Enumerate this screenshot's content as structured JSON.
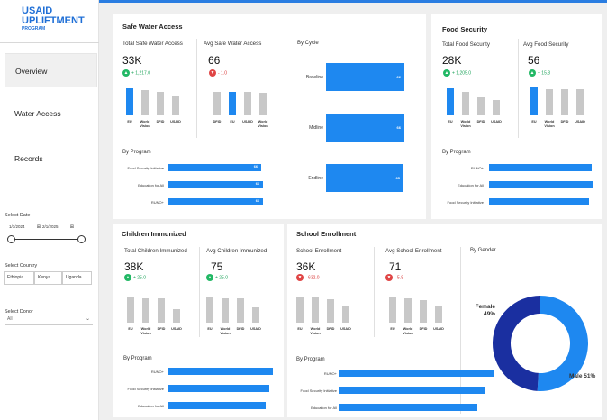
{
  "app": {
    "title": "USAID\nUPLIFTMENT",
    "title_line1": "USAID",
    "title_line2": "UPLIFTMENT",
    "subtitle": "PROGRAM"
  },
  "nav": [
    {
      "label": "Overview",
      "active": true
    },
    {
      "label": "Water Access",
      "active": false
    },
    {
      "label": "Records",
      "active": false
    }
  ],
  "filters": {
    "date_label": "Select Date",
    "date_start": "1/1/2024",
    "date_end": "2/1/2025",
    "country_label": "Select Country",
    "countries": [
      "Ethiopia",
      "Kenya",
      "Uganda"
    ],
    "donor_label": "Select Donor",
    "donor_value": "All"
  },
  "safe_water": {
    "title": "Safe Water Access",
    "total_label": "Total Safe Water Access",
    "total_value": "33K",
    "total_delta": "+ 1,217.0",
    "avg_label": "Avg Safe Water Access",
    "avg_value": "66",
    "avg_delta": "- 1.0",
    "total_bars": [
      {
        "label": "EU",
        "value": 1.0,
        "highlight": true
      },
      {
        "label": "World Vision",
        "value": 0.92,
        "highlight": false
      },
      {
        "label": "DFID",
        "value": 0.88,
        "highlight": false
      },
      {
        "label": "USAID",
        "value": 0.7,
        "highlight": false
      }
    ],
    "avg_bars": [
      {
        "label": "DFID",
        "value": 0.85,
        "highlight": false
      },
      {
        "label": "EU",
        "value": 0.88,
        "highlight": true
      },
      {
        "label": "USAID",
        "value": 0.86,
        "highlight": false
      },
      {
        "label": "World Vision",
        "value": 0.84,
        "highlight": false
      }
    ],
    "cycle_title": "By Cycle",
    "cycles": [
      {
        "label": "Baseline",
        "value": "66"
      },
      {
        "label": "Midline",
        "value": "66"
      },
      {
        "label": "Endline",
        "value": "65"
      }
    ],
    "program_title": "By Program",
    "programs": [
      {
        "label": "Food Security Initiative",
        "value": "66",
        "share": 0.96
      },
      {
        "label": "Education for All",
        "value": "66",
        "share": 0.98
      },
      {
        "label": "RUNO+",
        "value": "66",
        "share": 0.98
      }
    ]
  },
  "food_security": {
    "title": "Food Security",
    "total_label": "Total Food Security",
    "total_value": "28K",
    "total_delta": "+ 1,205.0",
    "avg_label": "Avg Food Security",
    "avg_value": "56",
    "avg_delta": "+ 15.8",
    "total_bars": [
      {
        "label": "EU",
        "value": 1.0,
        "highlight": true
      },
      {
        "label": "World Vision",
        "value": 0.88,
        "highlight": false
      },
      {
        "label": "DFID",
        "value": 0.68,
        "highlight": false
      },
      {
        "label": "USAID",
        "value": 0.55,
        "highlight": false
      }
    ],
    "avg_bars": [
      {
        "label": "EU",
        "value": 0.97,
        "highlight": true
      },
      {
        "label": "World Vision",
        "value": 0.92,
        "highlight": false
      },
      {
        "label": "DFID",
        "value": 0.9,
        "highlight": false
      },
      {
        "label": "USAID",
        "value": 0.92,
        "highlight": false
      }
    ],
    "program_title": "By Program",
    "programs": [
      {
        "label": "RUNO+",
        "share": 0.98
      },
      {
        "label": "Education for All",
        "share": 0.99
      },
      {
        "label": "Food Security Initiative",
        "share": 0.96
      }
    ]
  },
  "children_immunized": {
    "title": "Children Immunized",
    "total_label": "Total Children Immunized",
    "total_value": "38K",
    "total_delta": "+ 25.0",
    "avg_label": "Avg Children Immunized",
    "avg_value": "75",
    "avg_delta": "+ 25.0",
    "total_bars": [
      {
        "label": "EU",
        "value": 1.0,
        "highlight": false
      },
      {
        "label": "World Vision",
        "value": 0.95,
        "highlight": false
      },
      {
        "label": "DFID",
        "value": 0.98,
        "highlight": false
      },
      {
        "label": "USAID",
        "value": 0.55,
        "highlight": false
      }
    ],
    "avg_bars": [
      {
        "label": "EU",
        "value": 1.0,
        "highlight": false
      },
      {
        "label": "World Vision",
        "value": 0.95,
        "highlight": false
      },
      {
        "label": "DFID",
        "value": 0.96,
        "highlight": false
      },
      {
        "label": "USAID",
        "value": 0.6,
        "highlight": false
      }
    ],
    "program_title": "By Program",
    "programs": [
      {
        "label": "RUNO+",
        "share": 1.0
      },
      {
        "label": "Food Security Initiative",
        "share": 0.97
      },
      {
        "label": "Education for All",
        "share": 0.93
      }
    ]
  },
  "school_enrollment": {
    "title": "School Enrollment",
    "total_label": "School Enrollment",
    "total_value": "36K",
    "total_delta": "- 632.0",
    "avg_label": "Avg School Enrollment",
    "avg_value": "71",
    "avg_delta": "- 5.8",
    "total_bars": [
      {
        "label": "EU",
        "value": 1.0,
        "highlight": false
      },
      {
        "label": "World Vision",
        "value": 1.0,
        "highlight": false
      },
      {
        "label": "DFID",
        "value": 0.92,
        "highlight": false
      },
      {
        "label": "USAID",
        "value": 0.64,
        "highlight": false
      }
    ],
    "avg_bars": [
      {
        "label": "EU",
        "value": 1.0,
        "highlight": false
      },
      {
        "label": "World Vision",
        "value": 0.97,
        "highlight": false
      },
      {
        "label": "DFID",
        "value": 0.9,
        "highlight": false
      },
      {
        "label": "USAID",
        "value": 0.64,
        "highlight": false
      }
    ],
    "program_title": "By Program",
    "programs": [
      {
        "label": "RUNO+",
        "share": 0.98
      },
      {
        "label": "Food Security Initiative",
        "share": 0.93
      },
      {
        "label": "Education for All",
        "share": 0.88
      }
    ],
    "gender_title": "By Gender",
    "gender": [
      {
        "label": "Female",
        "pct": "49%",
        "value": 49,
        "color": "#1a2fa0"
      },
      {
        "label": "Male",
        "pct": "51%",
        "value": 51,
        "color": "#1e88f0"
      }
    ]
  },
  "colors": {
    "accent": "#1e88f0",
    "up": "#22b865",
    "down": "#e04545",
    "bar_grey": "#c8c8c8"
  }
}
